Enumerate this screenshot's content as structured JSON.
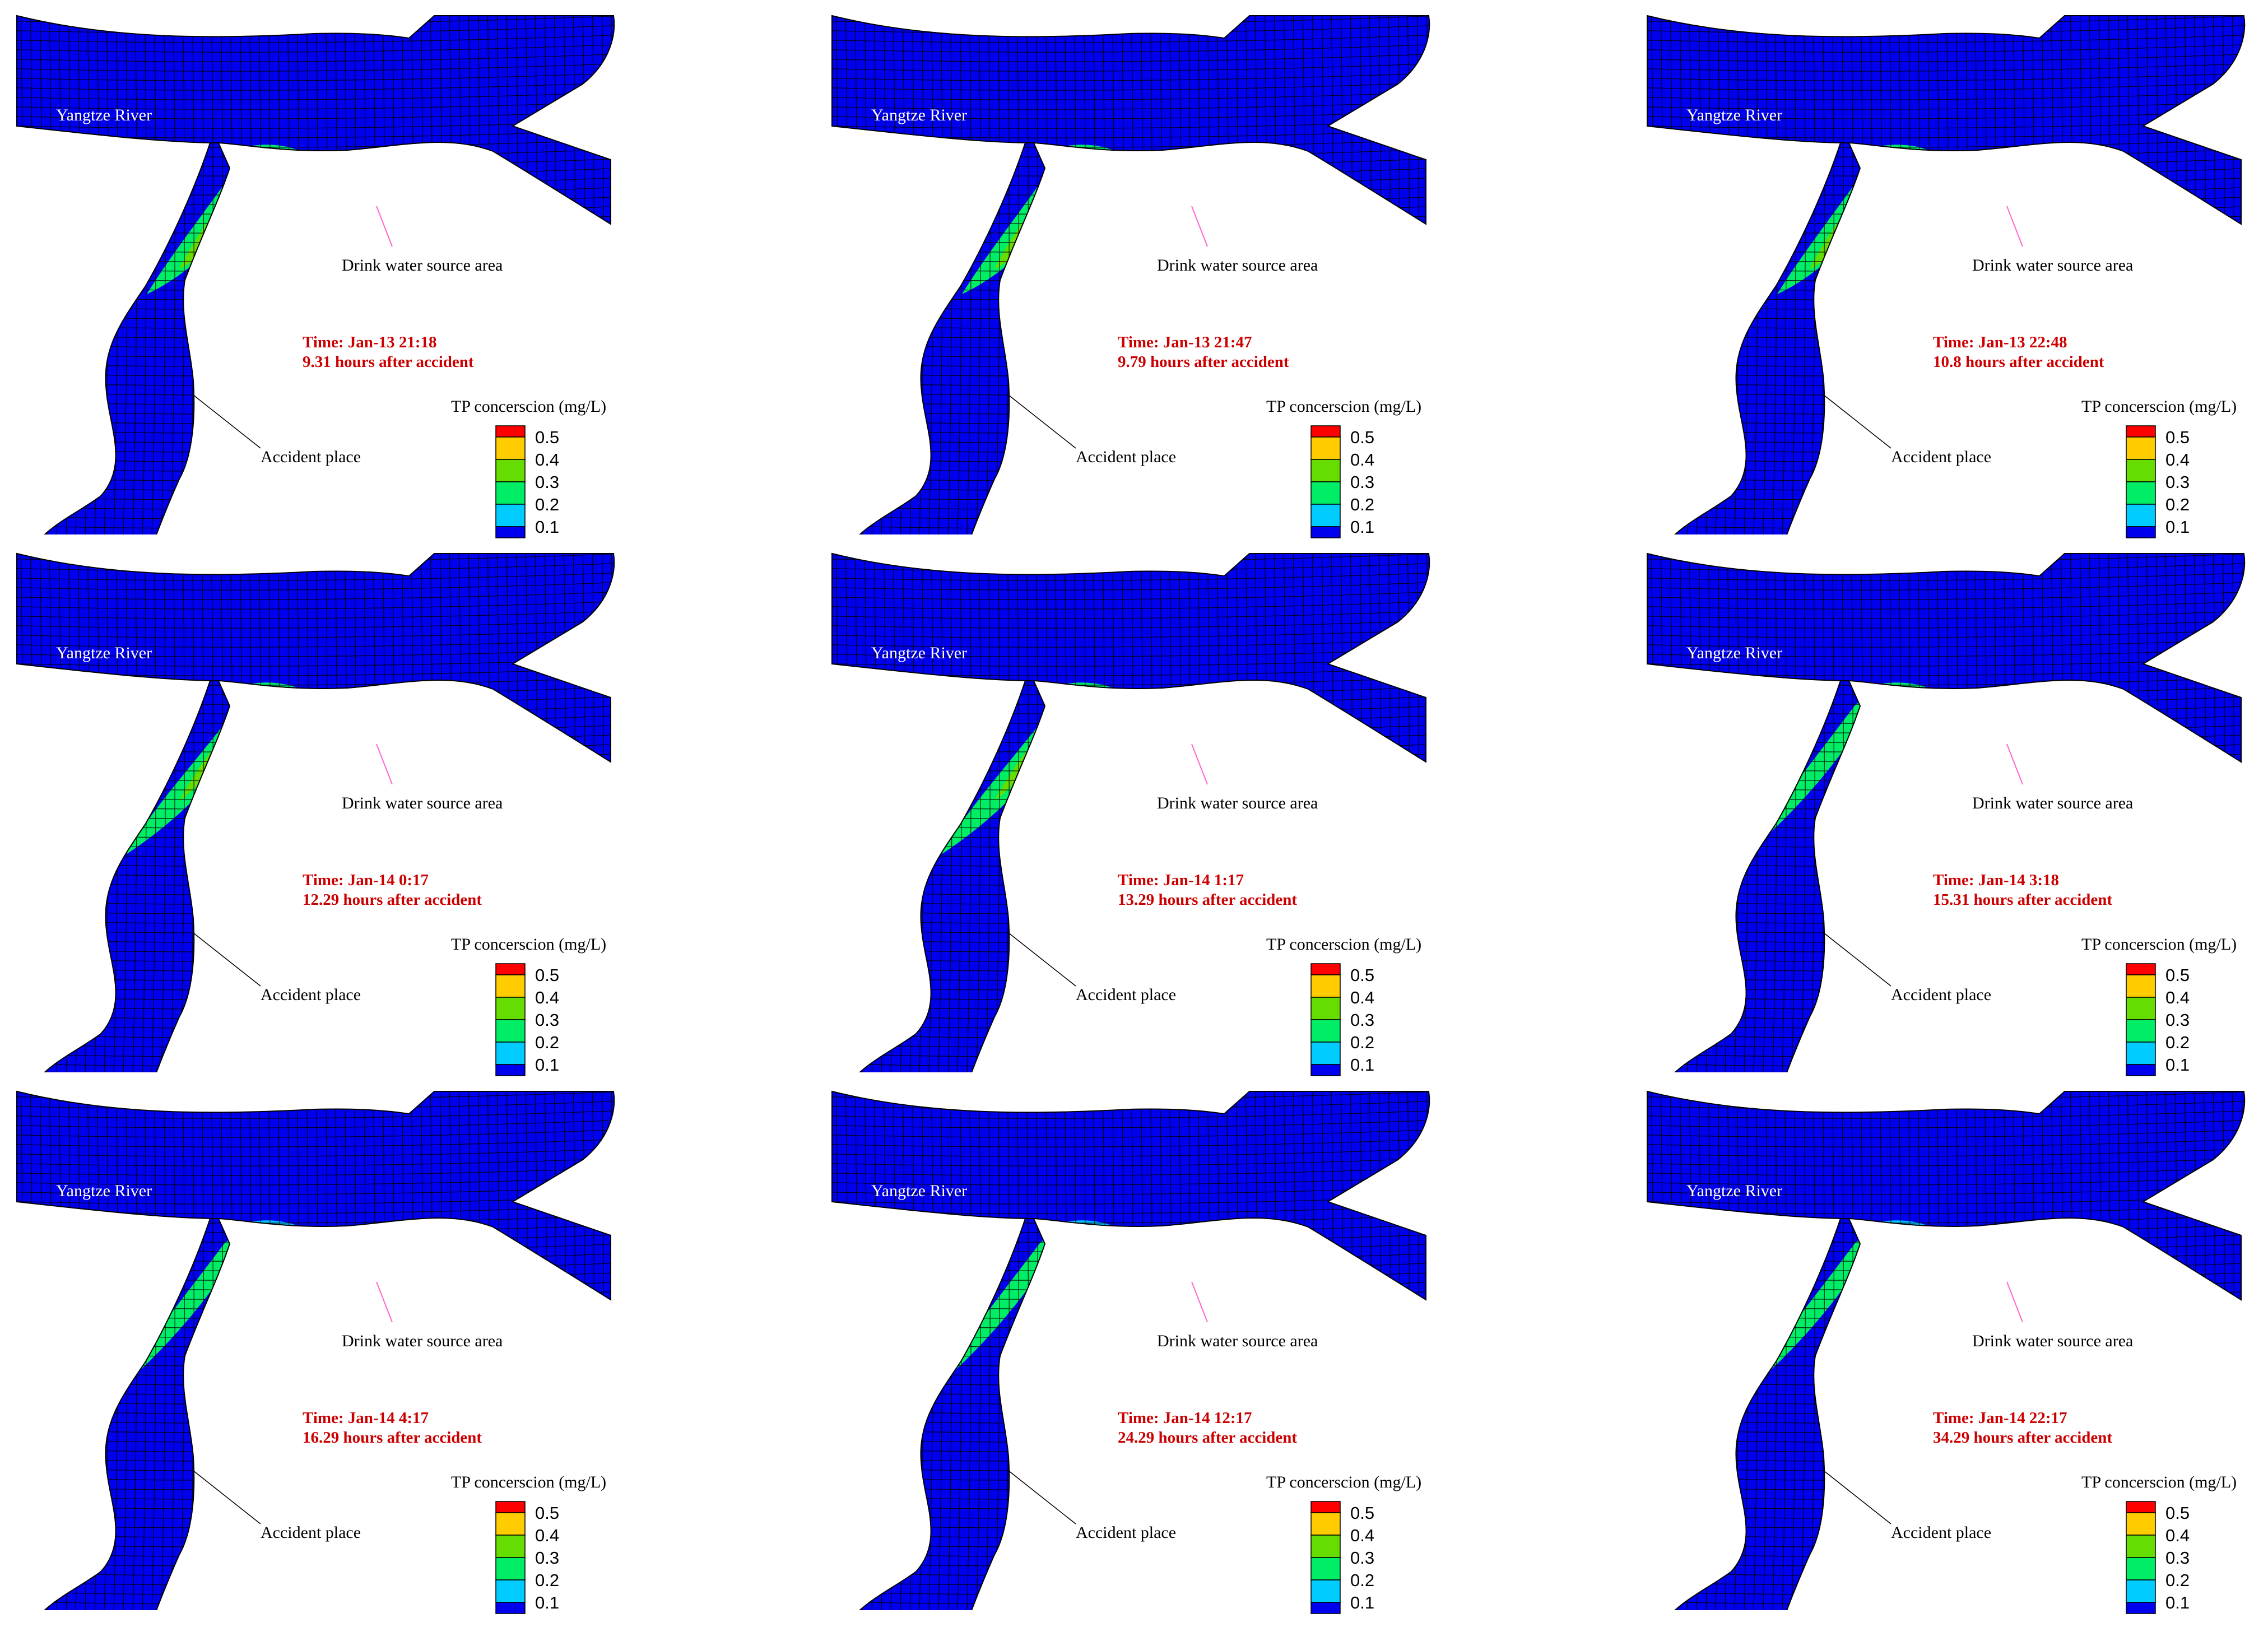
{
  "labels": {
    "river": "Yangtze River",
    "source": "Drink water source area",
    "accident": "Accident place",
    "legend_title": "TP concerscion (mg/L)"
  },
  "legend": [
    {
      "value": "0.5",
      "color": "#ff0000"
    },
    {
      "value": "0.4",
      "color": "#ffcc00"
    },
    {
      "value": "0.3",
      "color": "#66dd00"
    },
    {
      "value": "0.2",
      "color": "#00ee66"
    },
    {
      "value": "0.1",
      "color": "#00ccff"
    },
    {
      "value": "",
      "color": "#0000ee"
    }
  ],
  "colors": {
    "river_fill": "#0000ee",
    "grid": "#000000",
    "time_text": "#cc0000",
    "source_pointer": "#ff66cc"
  },
  "panels": [
    {
      "time": "Time: Jan-13 21:18",
      "elapsed": "9.31 hours after accident",
      "tributary_plume": [
        0.2,
        0.3,
        0.4
      ],
      "source_plume": 0.2
    },
    {
      "time": "Time: Jan-13 21:47",
      "elapsed": "9.79 hours after accident",
      "tributary_plume": [
        0.2,
        0.3,
        0.4
      ],
      "source_plume": 0.2
    },
    {
      "time": "Time: Jan-13 22:48",
      "elapsed": "10.8 hours after accident",
      "tributary_plume": [
        0.2,
        0.3,
        0.4
      ],
      "source_plume": 0.2
    },
    {
      "time": "Time: Jan-14 0:17",
      "elapsed": "12.29 hours after accident",
      "tributary_plume": [
        0.2,
        0.3
      ],
      "source_plume": 0.2
    },
    {
      "time": "Time: Jan-14 1:17",
      "elapsed": "13.29 hours after accident",
      "tributary_plume": [
        0.2,
        0.3
      ],
      "source_plume": 0.2
    },
    {
      "time": "Time: Jan-14 3:18",
      "elapsed": "15.31 hours after accident",
      "tributary_plume": [
        0.2
      ],
      "source_plume": 0.2
    },
    {
      "time": "Time: Jan-14 4:17",
      "elapsed": "16.29 hours after accident",
      "tributary_plume": [
        0.2
      ],
      "source_plume": 0.1
    },
    {
      "time": "Time: Jan-14 12:17",
      "elapsed": "24.29 hours after accident",
      "tributary_plume": [
        0.2
      ],
      "source_plume": 0.1
    },
    {
      "time": "Time: Jan-14 22:17",
      "elapsed": "34.29 hours after accident",
      "tributary_plume": [
        0.2
      ],
      "source_plume": 0.1
    }
  ]
}
